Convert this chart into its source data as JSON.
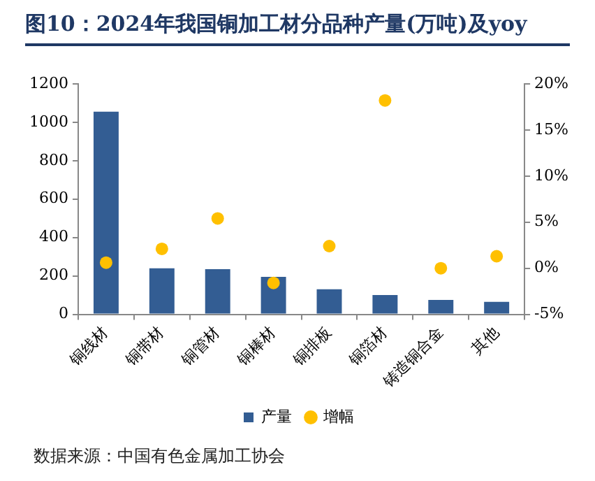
{
  "chart_data": {
    "type": "bar",
    "title": "图10：2024年我国铜加工材分品种产量(万吨)及yoy",
    "categories": [
      "铜线材",
      "铜带材",
      "铜管材",
      "铜棒材",
      "铜排板",
      "铜箔材",
      "铸造铜合金",
      "其他"
    ],
    "series": [
      {
        "name": "产量",
        "color": "#335d93",
        "values": [
          1055,
          240,
          235,
          195,
          130,
          100,
          75,
          65
        ]
      },
      {
        "name": "增幅",
        "type": "scatter",
        "axis": "y2",
        "color": "#ffc000",
        "values": [
          0.6,
          2.1,
          5.4,
          -1.6,
          2.4,
          18.2,
          0.0,
          1.3
        ]
      }
    ],
    "ylim": [
      0,
      1200
    ],
    "yticks": [
      0,
      200,
      400,
      600,
      800,
      1000,
      1200
    ],
    "y2lim": [
      -5,
      20
    ],
    "y2ticks": [
      {
        "value": -5,
        "label": "-5%"
      },
      {
        "value": 0,
        "label": "0%"
      },
      {
        "value": 5,
        "label": "5%"
      },
      {
        "value": 10,
        "label": "10%"
      },
      {
        "value": 15,
        "label": "15%"
      },
      {
        "value": 20,
        "label": "20%"
      }
    ],
    "grid": false,
    "legend": "bottom",
    "marker": "circle",
    "annotations": [
      "数据来源：中国有色金属加工协会"
    ]
  }
}
